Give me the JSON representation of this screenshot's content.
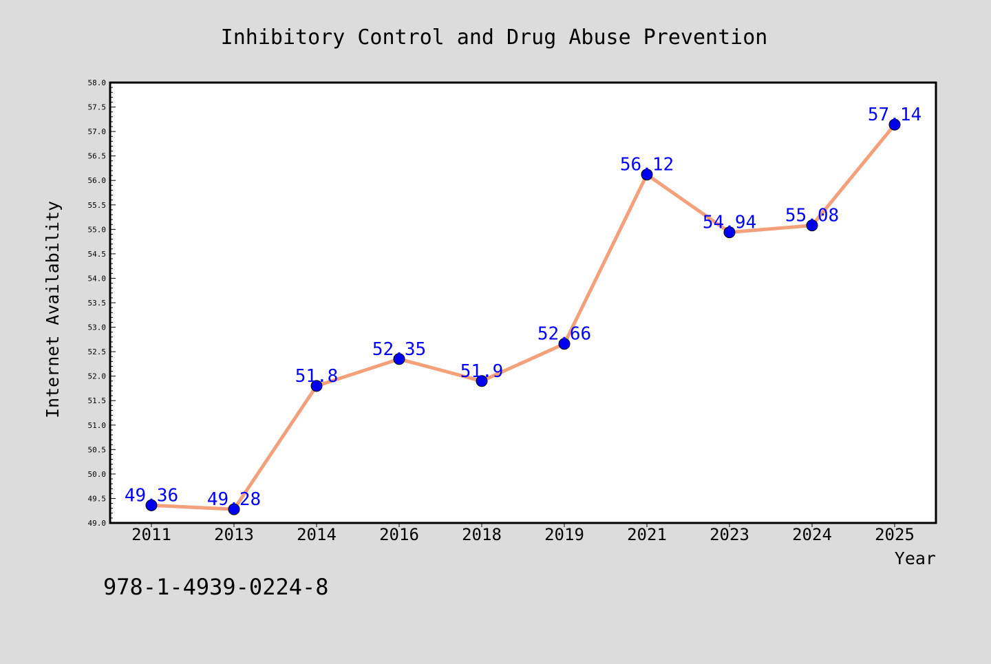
{
  "chart_data": {
    "type": "line",
    "title": "Inhibitory Control and Drug Abuse Prevention",
    "xlabel": "Year",
    "ylabel": "Internet Availability",
    "categories": [
      "2011",
      "2013",
      "2014",
      "2016",
      "2018",
      "2019",
      "2021",
      "2023",
      "2024",
      "2025"
    ],
    "series": [
      {
        "values": [
          49.36,
          49.28,
          51.8,
          52.35,
          51.9,
          52.66,
          56.12,
          54.94,
          55.08,
          57.14
        ],
        "labels": [
          "49.36",
          "49.28",
          "51.8",
          "52.35",
          "51.9",
          "52.66",
          "56.12",
          "54.94",
          "55.08",
          "57.14"
        ],
        "line_color": "#f4a07a",
        "marker_color": "#0000ee",
        "label_color": "#0000ff"
      }
    ],
    "ylim": [
      49.0,
      58.0
    ],
    "yticks": [
      "49.0",
      "49.5",
      "50.0",
      "50.5",
      "51.0",
      "51.5",
      "52.0",
      "52.5",
      "53.0",
      "53.5",
      "54.0",
      "54.5",
      "55.0",
      "55.5",
      "56.0",
      "56.5",
      "57.0",
      "57.5",
      "58.0"
    ],
    "grid": false,
    "legend": "none"
  },
  "annotation": "978-1-4939-0224-8",
  "colors": {
    "background": "#dcdcdc",
    "plot_background": "#ffffff",
    "axis": "#000000",
    "text": "#000000"
  }
}
